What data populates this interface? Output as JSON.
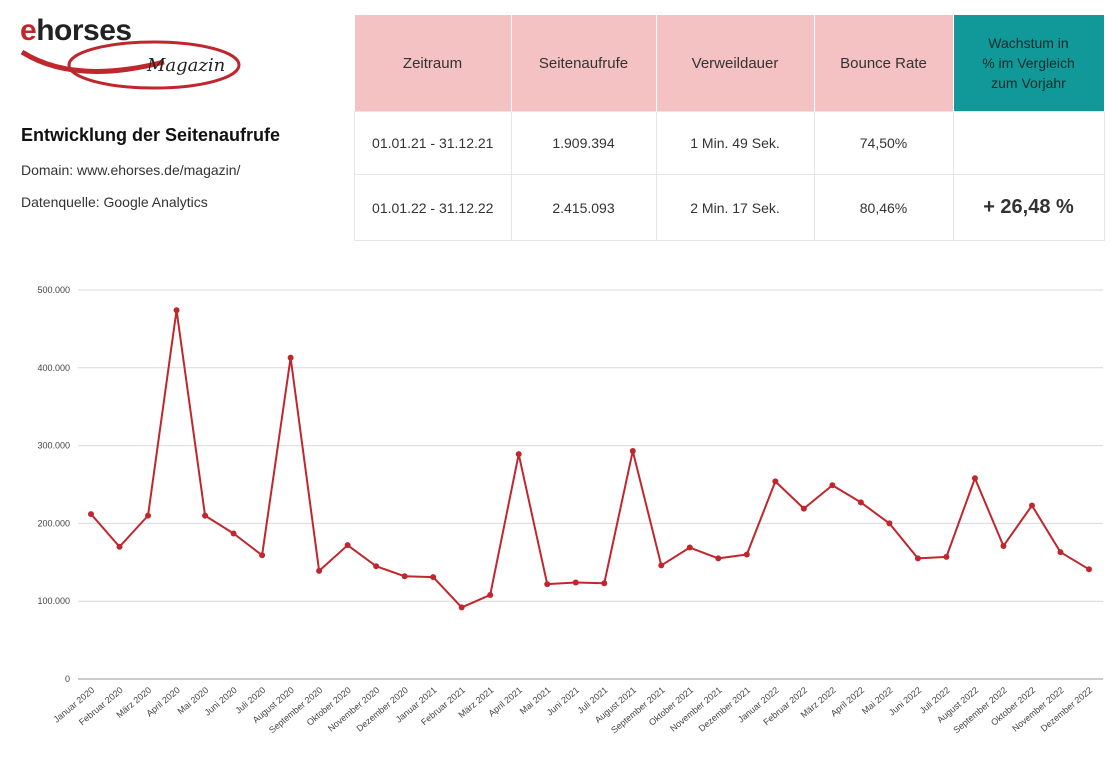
{
  "brand": {
    "name_prefix": "e",
    "name_rest": "horses",
    "sub": "Magazin",
    "accent": "#c0272d"
  },
  "header": {
    "title": "Entwicklung der Seitenaufrufe",
    "domain": "Domain: www.ehorses.de/magazin/",
    "source": "Datenquelle: Google Analytics"
  },
  "stats_table": {
    "headers": [
      "Zeitraum",
      "Seitenaufrufe",
      "Verweildauer",
      "Bounce Rate"
    ],
    "growth_header": [
      "Wachstum in",
      "% im Vergleich",
      "zum Vorjahr"
    ],
    "rows": [
      {
        "period": "01.01.21 - 31.12.21",
        "views": "1.909.394",
        "duration": "1 Min. 49 Sek.",
        "bounce": "74,50%",
        "growth": ""
      },
      {
        "period": "01.01.22 - 31.12.22",
        "views": "2.415.093",
        "duration": "2 Min. 17 Sek.",
        "bounce": "80,46%",
        "growth": "+ 26,48 %"
      }
    ],
    "colors": {
      "header_bg": "#f4c2c2",
      "growth_bg": "#11999a",
      "growth_text": "#11999a"
    }
  },
  "chart_data": {
    "type": "line",
    "title": "",
    "xlabel": "",
    "ylabel": "",
    "ylim": [
      0,
      500000
    ],
    "yticks": [
      0,
      100000,
      200000,
      300000,
      400000,
      500000
    ],
    "ytick_labels": [
      "0",
      "100.000",
      "200.000",
      "300.000",
      "400.000",
      "500.000"
    ],
    "grid": true,
    "line_color": "#c0272d",
    "categories": [
      "Januar 2020",
      "Februar 2020",
      "März 2020",
      "April 2020",
      "Mai 2020",
      "Juni 2020",
      "Juli 2020",
      "August 2020",
      "September 2020",
      "Oktober 2020",
      "November 2020",
      "Dezember 2020",
      "Januar 2021",
      "Februar 2021",
      "März 2021",
      "April 2021",
      "Mai 2021",
      "Juni 2021",
      "Juli 2021",
      "August 2021",
      "September 2021",
      "Oktober 2021",
      "November 2021",
      "Dezember 2021",
      "Januar 2022",
      "Februar 2022",
      "März 2022",
      "April 2022",
      "Mai 2022",
      "Juni 2022",
      "Juli 2022",
      "August 2022",
      "September 2022",
      "Oktober 2022",
      "November 2022",
      "Dezember 2022"
    ],
    "series": [
      {
        "name": "Seitenaufrufe",
        "values": [
          212000,
          170000,
          210000,
          474000,
          210000,
          187000,
          159000,
          413000,
          139000,
          172000,
          145000,
          132000,
          131000,
          92000,
          108000,
          289000,
          122000,
          124000,
          123000,
          293000,
          146000,
          169000,
          155000,
          160000,
          254000,
          219000,
          249000,
          227000,
          200000,
          155000,
          157000,
          258000,
          171000,
          223000,
          163000,
          141000
        ]
      }
    ]
  }
}
